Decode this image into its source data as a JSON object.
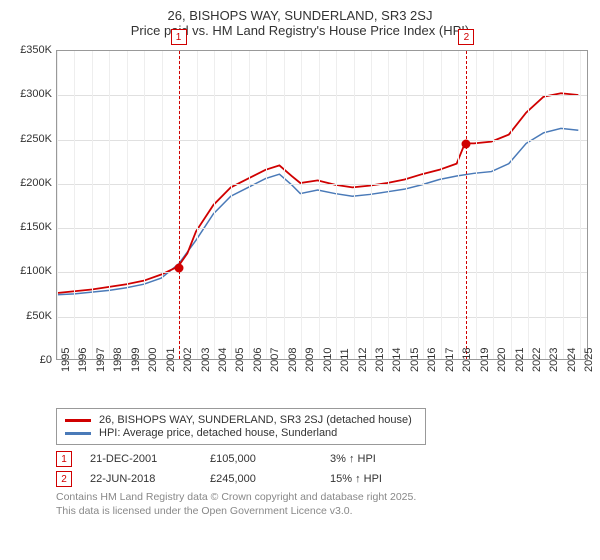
{
  "title": "26, BISHOPS WAY, SUNDERLAND, SR3 2SJ",
  "subtitle": "Price paid vs. HM Land Registry's House Price Index (HPI)",
  "chart": {
    "type": "line",
    "x_start": 1995,
    "x_end": 2025.5,
    "x_ticks": [
      1995,
      1996,
      1997,
      1998,
      1999,
      2000,
      2001,
      2002,
      2003,
      2004,
      2005,
      2006,
      2007,
      2008,
      2009,
      2010,
      2011,
      2012,
      2013,
      2014,
      2015,
      2016,
      2017,
      2018,
      2019,
      2020,
      2021,
      2022,
      2023,
      2024,
      2025
    ],
    "ylim": [
      0,
      350000
    ],
    "y_ticks": [
      0,
      50000,
      100000,
      150000,
      200000,
      250000,
      300000,
      350000
    ],
    "y_tick_labels": [
      "£0",
      "£50K",
      "£100K",
      "£150K",
      "£200K",
      "£250K",
      "£300K",
      "£350K"
    ],
    "grid_color": "#e0e0e0",
    "background_color": "#ffffff",
    "axis_fontsize": 11,
    "title_fontsize": 13,
    "series_red": {
      "name": "26, BISHOPS WAY, SUNDERLAND, SR3 2SJ (detached house)",
      "color": "#d00000",
      "line_width": 1.8,
      "data": [
        [
          1995,
          75000
        ],
        [
          1996,
          77000
        ],
        [
          1997,
          79000
        ],
        [
          1998,
          82000
        ],
        [
          1999,
          85000
        ],
        [
          2000,
          89000
        ],
        [
          2001,
          96000
        ],
        [
          2001.97,
          105000
        ],
        [
          2002.5,
          120000
        ],
        [
          2003,
          145000
        ],
        [
          2004,
          175000
        ],
        [
          2005,
          195000
        ],
        [
          2006,
          205000
        ],
        [
          2007,
          215000
        ],
        [
          2007.8,
          220000
        ],
        [
          2008.5,
          208000
        ],
        [
          2009,
          200000
        ],
        [
          2010,
          203000
        ],
        [
          2011,
          198000
        ],
        [
          2012,
          195000
        ],
        [
          2013,
          197000
        ],
        [
          2014,
          200000
        ],
        [
          2015,
          204000
        ],
        [
          2016,
          210000
        ],
        [
          2017,
          215000
        ],
        [
          2018,
          222000
        ],
        [
          2018.47,
          245000
        ],
        [
          2019,
          245000
        ],
        [
          2020,
          247000
        ],
        [
          2021,
          255000
        ],
        [
          2022,
          280000
        ],
        [
          2023,
          298000
        ],
        [
          2024,
          302000
        ],
        [
          2025,
          300000
        ]
      ]
    },
    "series_blue": {
      "name": "HPI: Average price, detached house, Sunderland",
      "color": "#4a7ab8",
      "line_width": 1.5,
      "data": [
        [
          1995,
          73000
        ],
        [
          1996,
          74000
        ],
        [
          1997,
          76000
        ],
        [
          1998,
          78000
        ],
        [
          1999,
          81000
        ],
        [
          2000,
          85000
        ],
        [
          2001,
          92000
        ],
        [
          2002,
          108000
        ],
        [
          2003,
          135000
        ],
        [
          2004,
          165000
        ],
        [
          2005,
          185000
        ],
        [
          2006,
          195000
        ],
        [
          2007,
          205000
        ],
        [
          2007.8,
          210000
        ],
        [
          2008.5,
          198000
        ],
        [
          2009,
          188000
        ],
        [
          2010,
          192000
        ],
        [
          2011,
          188000
        ],
        [
          2012,
          185000
        ],
        [
          2013,
          187000
        ],
        [
          2014,
          190000
        ],
        [
          2015,
          193000
        ],
        [
          2016,
          198000
        ],
        [
          2017,
          204000
        ],
        [
          2018,
          208000
        ],
        [
          2019,
          211000
        ],
        [
          2020,
          213000
        ],
        [
          2021,
          222000
        ],
        [
          2022,
          245000
        ],
        [
          2023,
          257000
        ],
        [
          2024,
          262000
        ],
        [
          2025,
          260000
        ]
      ]
    },
    "sales": [
      {
        "marker": "1",
        "x": 2001.97,
        "price": 105000,
        "date": "21-DEC-2001",
        "price_label": "£105,000",
        "hpi_pct": "3% ↑ HPI",
        "marker_color": "#d00000"
      },
      {
        "marker": "2",
        "x": 2018.47,
        "price": 245000,
        "date": "22-JUN-2018",
        "price_label": "£245,000",
        "hpi_pct": "15% ↑ HPI",
        "marker_color": "#d00000"
      }
    ],
    "sale_dot_color": "#d00000",
    "sale_line_color": "#d00000"
  },
  "legend": {
    "red_label": "26, BISHOPS WAY, SUNDERLAND, SR3 2SJ (detached house)",
    "blue_label": "HPI: Average price, detached house, Sunderland"
  },
  "footnote_line1": "Contains HM Land Registry data © Crown copyright and database right 2025.",
  "footnote_line2": "This data is licensed under the Open Government Licence v3.0."
}
